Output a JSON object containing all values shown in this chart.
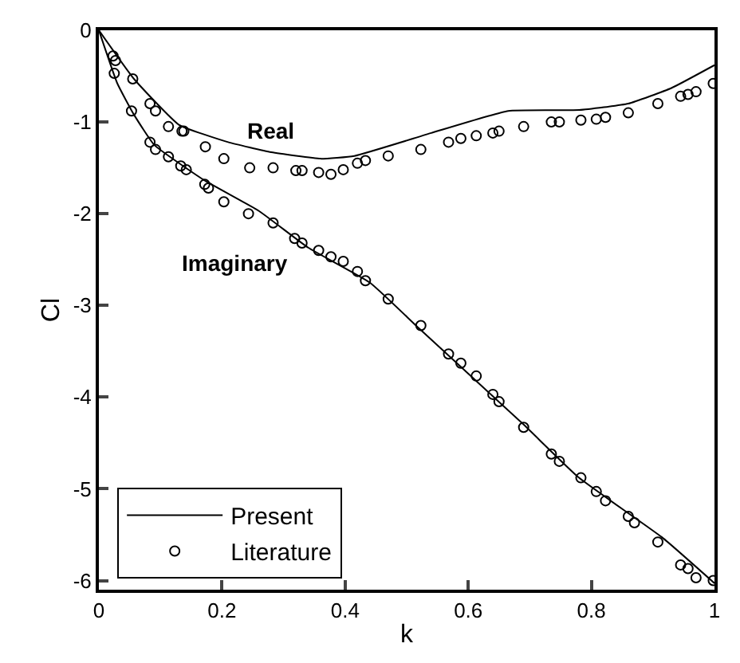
{
  "chart_data": {
    "type": "line",
    "xlabel": "k",
    "ylabel": "Cl",
    "xlim": [
      0,
      1
    ],
    "ylim": [
      -6.1,
      0
    ],
    "xticks": [
      0,
      0.2,
      0.4,
      0.6,
      0.8,
      1
    ],
    "yticks": [
      0,
      -1,
      -2,
      -3,
      -4,
      -5,
      -6
    ],
    "grid": false,
    "legend": "bottom left",
    "annotations": [
      "Real",
      "Imaginary"
    ],
    "series": [
      {
        "name": "Present",
        "color": "#000000",
        "line_style": "solid",
        "marker": "none",
        "x": [
          0,
          0.057,
          0.13,
          0.21,
          0.28,
          0.36,
          0.415,
          0.54,
          0.665,
          0.78,
          0.86,
          0.93,
          1.0
        ],
        "values": [
          0,
          -0.53,
          -1.03,
          -1.22,
          -1.33,
          -1.4,
          -1.37,
          -1.12,
          -0.88,
          -0.87,
          -0.8,
          -0.63,
          -0.38
        ]
      },
      {
        "color": "#000000",
        "line_style": "solid",
        "marker": "none",
        "x": [
          0,
          0.03,
          0.057,
          0.09,
          0.17,
          0.26,
          0.34,
          0.44,
          0.52,
          0.69,
          0.78,
          0.915,
          1.0
        ],
        "values": [
          0,
          -0.58,
          -0.92,
          -1.25,
          -1.63,
          -1.97,
          -2.37,
          -2.75,
          -3.25,
          -4.3,
          -4.88,
          -5.53,
          -6.03
        ]
      },
      {
        "name": "Literature",
        "type": "scatter",
        "color": "#000000",
        "marker": "circle",
        "x": [
          0.023,
          0.027,
          0.025,
          0.055,
          0.083,
          0.092,
          0.113,
          0.135,
          0.138,
          0.173,
          0.203,
          0.245,
          0.283,
          0.32,
          0.33,
          0.357,
          0.377,
          0.397,
          0.42,
          0.433,
          0.47,
          0.523,
          0.568,
          0.588,
          0.613,
          0.64,
          0.65,
          0.69,
          0.735,
          0.748,
          0.783,
          0.808,
          0.823,
          0.86,
          0.908,
          0.945,
          0.957,
          0.97,
          0.998
        ],
        "values": [
          -0.28,
          -0.33,
          -0.47,
          -0.53,
          -0.8,
          -0.88,
          -1.05,
          -1.1,
          -1.1,
          -1.27,
          -1.4,
          -1.5,
          -1.5,
          -1.53,
          -1.53,
          -1.55,
          -1.57,
          -1.52,
          -1.45,
          -1.42,
          -1.37,
          -1.3,
          -1.22,
          -1.18,
          -1.15,
          -1.12,
          -1.1,
          -1.05,
          -1.0,
          -1.0,
          -0.98,
          -0.97,
          -0.95,
          -0.9,
          -0.8,
          -0.72,
          -0.7,
          -0.67,
          -0.58
        ]
      },
      {
        "type": "scatter",
        "color": "#000000",
        "marker": "circle",
        "x": [
          0.053,
          0.083,
          0.092,
          0.113,
          0.133,
          0.142,
          0.172,
          0.178,
          0.203,
          0.243,
          0.283,
          0.318,
          0.33,
          0.357,
          0.377,
          0.397,
          0.42,
          0.433,
          0.47,
          0.523,
          0.568,
          0.588,
          0.613,
          0.64,
          0.65,
          0.69,
          0.735,
          0.748,
          0.783,
          0.808,
          0.823,
          0.86,
          0.87,
          0.908,
          0.945,
          0.957,
          0.97,
          0.998
        ],
        "values": [
          -0.88,
          -1.22,
          -1.3,
          -1.38,
          -1.48,
          -1.52,
          -1.68,
          -1.72,
          -1.87,
          -2.0,
          -2.1,
          -2.27,
          -2.32,
          -2.4,
          -2.47,
          -2.52,
          -2.63,
          -2.73,
          -2.93,
          -3.22,
          -3.53,
          -3.63,
          -3.77,
          -3.97,
          -4.05,
          -4.33,
          -4.62,
          -4.7,
          -4.88,
          -5.03,
          -5.13,
          -5.3,
          -5.37,
          -5.58,
          -5.83,
          -5.87,
          -5.97,
          -6.0
        ]
      }
    ]
  }
}
